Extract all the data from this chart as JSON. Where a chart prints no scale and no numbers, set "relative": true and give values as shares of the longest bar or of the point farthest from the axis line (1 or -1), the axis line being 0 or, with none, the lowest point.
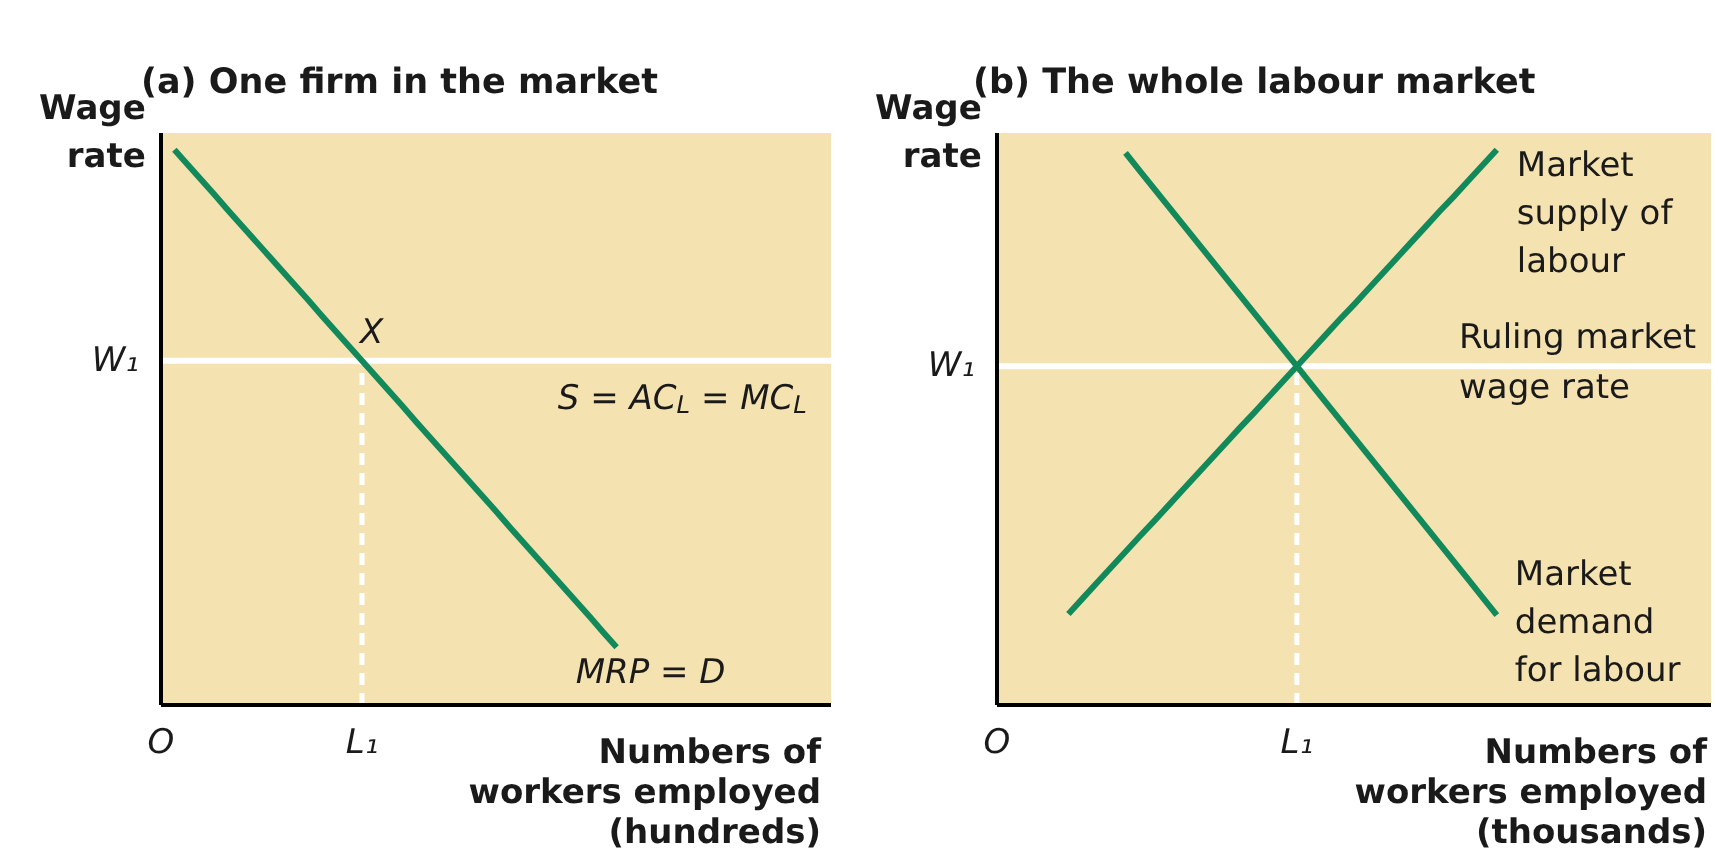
{
  "chart_data": [
    {
      "type": "line",
      "relative": true,
      "title": "(a) One firm in the market",
      "xlabel": "Numbers of\nworkers employed\n(hundreds)",
      "ylabel": "Wage\nrate",
      "categories": [
        "O",
        null,
        null,
        null,
        null,
        null,
        null,
        null,
        null,
        null,
        null,
        null,
        null,
        null,
        null,
        "L₁",
        null,
        null,
        null,
        null,
        null,
        null,
        null,
        null,
        null,
        null,
        null,
        null,
        null,
        null,
        null,
        null,
        null,
        null,
        null,
        null,
        null,
        null,
        null,
        null,
        null,
        null,
        null,
        null,
        null,
        null,
        null,
        null,
        null,
        null,
        null
      ],
      "series": [
        {
          "name": "MRP = D",
          "color": "#12895a",
          "values": [
            null,
            1.0,
            0.973,
            0.946,
            0.919,
            0.891,
            0.864,
            0.837,
            0.81,
            0.783,
            0.756,
            0.729,
            0.701,
            0.674,
            0.647,
            0.62,
            0.593,
            0.566,
            0.539,
            0.511,
            0.484,
            0.457,
            0.43,
            0.403,
            0.376,
            0.349,
            0.321,
            0.294,
            0.267,
            0.24,
            0.213,
            0.186,
            0.159,
            0.131,
            0.104,
            null,
            null,
            null,
            null,
            null,
            null,
            null,
            null,
            null,
            null,
            null,
            null,
            null,
            null,
            null,
            null
          ]
        }
      ],
      "ref_lines": [
        {
          "axis": "y",
          "value": 0.62,
          "label": "S = AC$_{L}$ = MC$_{L}$",
          "color": "#ffffff"
        },
        {
          "axis": "x",
          "value": "L₁",
          "color": "#ffffff",
          "line_style": "dashed"
        }
      ],
      "annotations": [
        {
          "text": "X",
          "x": "L₁",
          "y": 0.62
        },
        "W₁"
      ]
    },
    {
      "type": "line",
      "relative": true,
      "title": "(b) The whole labour market",
      "xlabel": "Numbers of\nworkers employed\n(thousands)",
      "ylabel": "Wage\nrate",
      "categories": [
        "O",
        null,
        null,
        null,
        null,
        null,
        null,
        null,
        null,
        null,
        null,
        null,
        null,
        null,
        null,
        null,
        null,
        null,
        null,
        null,
        null,
        "L₁",
        null,
        null,
        null,
        null,
        null,
        null,
        null,
        null,
        null,
        null,
        null,
        null,
        null,
        null,
        null,
        null,
        null,
        null,
        null,
        null,
        null,
        null,
        null,
        null,
        null,
        null,
        null,
        null,
        null
      ],
      "series": [
        {
          "name": "Market\nsupply of\nlabour",
          "color": "#12895a",
          "values": [
            null,
            null,
            null,
            null,
            null,
            0.164,
            0.192,
            0.22,
            0.248,
            0.276,
            0.304,
            0.331,
            0.359,
            0.387,
            0.415,
            0.443,
            0.471,
            0.499,
            0.526,
            0.554,
            0.582,
            0.61,
            0.638,
            0.666,
            0.694,
            0.721,
            0.749,
            0.777,
            0.805,
            0.833,
            0.861,
            0.889,
            0.916,
            0.944,
            0.972,
            1.0,
            null,
            null,
            null,
            null,
            null,
            null,
            null,
            null,
            null,
            null,
            null,
            null,
            null,
            null,
            null
          ]
        },
        {
          "name": "Market\ndemand\nfor labour",
          "color": "#12895a",
          "values": [
            null,
            null,
            null,
            null,
            null,
            null,
            null,
            null,
            null,
            0.994,
            0.962,
            0.93,
            0.898,
            0.866,
            0.834,
            0.802,
            0.77,
            0.738,
            0.706,
            0.674,
            0.642,
            0.61,
            0.578,
            0.546,
            0.514,
            0.482,
            0.45,
            0.418,
            0.386,
            0.354,
            0.322,
            0.29,
            0.258,
            0.226,
            0.194,
            0.162,
            null,
            null,
            null,
            null,
            null,
            null,
            null,
            null,
            null,
            null,
            null,
            null,
            null,
            null,
            null
          ]
        }
      ],
      "ref_lines": [
        {
          "axis": "y",
          "value": 0.61,
          "label": "Ruling market\nwage rate",
          "color": "#ffffff"
        },
        {
          "axis": "x",
          "value": "L₁",
          "color": "#ffffff",
          "line_style": "dashed"
        }
      ],
      "annotations": [
        "W₁"
      ]
    }
  ]
}
